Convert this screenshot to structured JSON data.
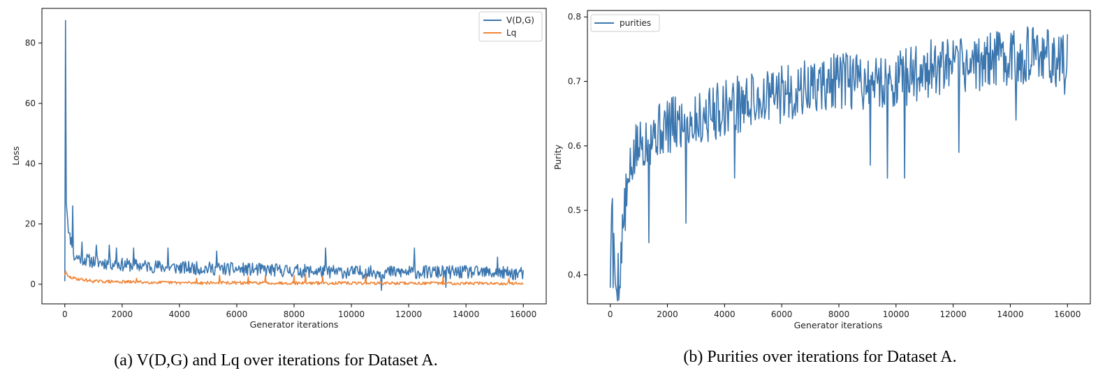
{
  "colors": {
    "series_blue": "#3b76af",
    "series_orange": "#ef8536",
    "frame": "#000000"
  },
  "figures": [
    {
      "caption": "(a) V(D,G) and Lq over iterations for Dataset A."
    },
    {
      "caption": "(b) Purities over iterations for Dataset A."
    }
  ],
  "chart_data": [
    {
      "type": "line",
      "xlabel": "Generator iterations",
      "ylabel": "Loss",
      "xlim": [
        -800,
        16800
      ],
      "ylim": [
        -6.5,
        91.5
      ],
      "xticks": [
        0,
        2000,
        4000,
        6000,
        8000,
        10000,
        12000,
        14000,
        16000
      ],
      "yticks": [
        0,
        20,
        40,
        60,
        80
      ],
      "grid": false,
      "legend_position": "top-right",
      "series": [
        {
          "name": "V(D,G)",
          "color": "#3b76af",
          "kind": "noisy",
          "x_start": 0,
          "x_step": 25,
          "keypoints": [
            [
              0,
              1
            ],
            [
              25,
              87.5
            ],
            [
              50,
              28
            ],
            [
              100,
              22
            ],
            [
              150,
              16
            ],
            [
              200,
              15
            ],
            [
              250,
              14
            ],
            [
              300,
              9
            ],
            [
              400,
              9
            ],
            [
              600,
              8.5
            ],
            [
              1000,
              7.5
            ],
            [
              2000,
              6.5
            ],
            [
              4000,
              5.5
            ],
            [
              6000,
              5
            ],
            [
              8000,
              4.5
            ],
            [
              10000,
              4
            ],
            [
              12000,
              4
            ],
            [
              14000,
              4
            ],
            [
              16000,
              3.5
            ]
          ],
          "noise": 2.2,
          "seed": 11,
          "spikes": [
            [
              280,
              26
            ],
            [
              600,
              14
            ],
            [
              1100,
              13
            ],
            [
              1550,
              13
            ],
            [
              1800,
              12
            ],
            [
              2400,
              12
            ],
            [
              3600,
              12
            ],
            [
              5300,
              11
            ],
            [
              9100,
              12
            ],
            [
              12200,
              12
            ],
            [
              11050,
              -2
            ],
            [
              13300,
              -1
            ],
            [
              15100,
              9
            ]
          ]
        },
        {
          "name": "Lq",
          "color": "#ef8536",
          "kind": "noisy",
          "x_start": 0,
          "x_step": 25,
          "keypoints": [
            [
              0,
              3
            ],
            [
              25,
              4.5
            ],
            [
              100,
              2.5
            ],
            [
              300,
              2
            ],
            [
              1000,
              1
            ],
            [
              2000,
              0.8
            ],
            [
              4000,
              0.5
            ],
            [
              8000,
              0.4
            ],
            [
              16000,
              0.3
            ]
          ],
          "noise": 0.5,
          "seed": 29,
          "spikes": [
            [
              2500,
              2
            ],
            [
              4600,
              2
            ],
            [
              5400,
              3
            ],
            [
              6400,
              2.5
            ],
            [
              7000,
              3
            ],
            [
              8000,
              3
            ],
            [
              8400,
              3.5
            ],
            [
              9000,
              2.5
            ],
            [
              10500,
              3
            ],
            [
              13200,
              2.5
            ],
            [
              15500,
              2
            ]
          ]
        }
      ]
    },
    {
      "type": "line",
      "xlabel": "Generator iterations",
      "ylabel": "Purity",
      "xlim": [
        -800,
        16800
      ],
      "ylim": [
        0.355,
        0.81
      ],
      "xticks": [
        0,
        2000,
        4000,
        6000,
        8000,
        10000,
        12000,
        14000,
        16000
      ],
      "yticks": [
        0.4,
        0.5,
        0.6,
        0.7,
        0.8
      ],
      "grid": false,
      "legend_position": "top-left",
      "series": [
        {
          "name": "purities",
          "color": "#3b76af",
          "kind": "noisy",
          "x_start": 0,
          "x_step": 25,
          "keypoints": [
            [
              0,
              0.38
            ],
            [
              50,
              0.53
            ],
            [
              150,
              0.4
            ],
            [
              300,
              0.4
            ],
            [
              500,
              0.5
            ],
            [
              800,
              0.58
            ],
            [
              1000,
              0.6
            ],
            [
              1500,
              0.62
            ],
            [
              2000,
              0.63
            ],
            [
              3000,
              0.64
            ],
            [
              4000,
              0.66
            ],
            [
              5000,
              0.67
            ],
            [
              6000,
              0.68
            ],
            [
              7000,
              0.69
            ],
            [
              8000,
              0.7
            ],
            [
              9000,
              0.7
            ],
            [
              10000,
              0.7
            ],
            [
              11000,
              0.72
            ],
            [
              12000,
              0.72
            ],
            [
              13000,
              0.73
            ],
            [
              14000,
              0.74
            ],
            [
              15000,
              0.74
            ],
            [
              16000,
              0.73
            ]
          ],
          "noise": 0.045,
          "seed": 5,
          "spikes": [
            [
              100,
              0.38
            ],
            [
              200,
              0.38
            ],
            [
              350,
              0.38
            ],
            [
              1350,
              0.45
            ],
            [
              2650,
              0.48
            ],
            [
              4350,
              0.55
            ],
            [
              9100,
              0.57
            ],
            [
              9700,
              0.55
            ],
            [
              10300,
              0.55
            ],
            [
              12200,
              0.59
            ],
            [
              14200,
              0.64
            ],
            [
              15900,
              0.68
            ]
          ]
        }
      ]
    }
  ]
}
